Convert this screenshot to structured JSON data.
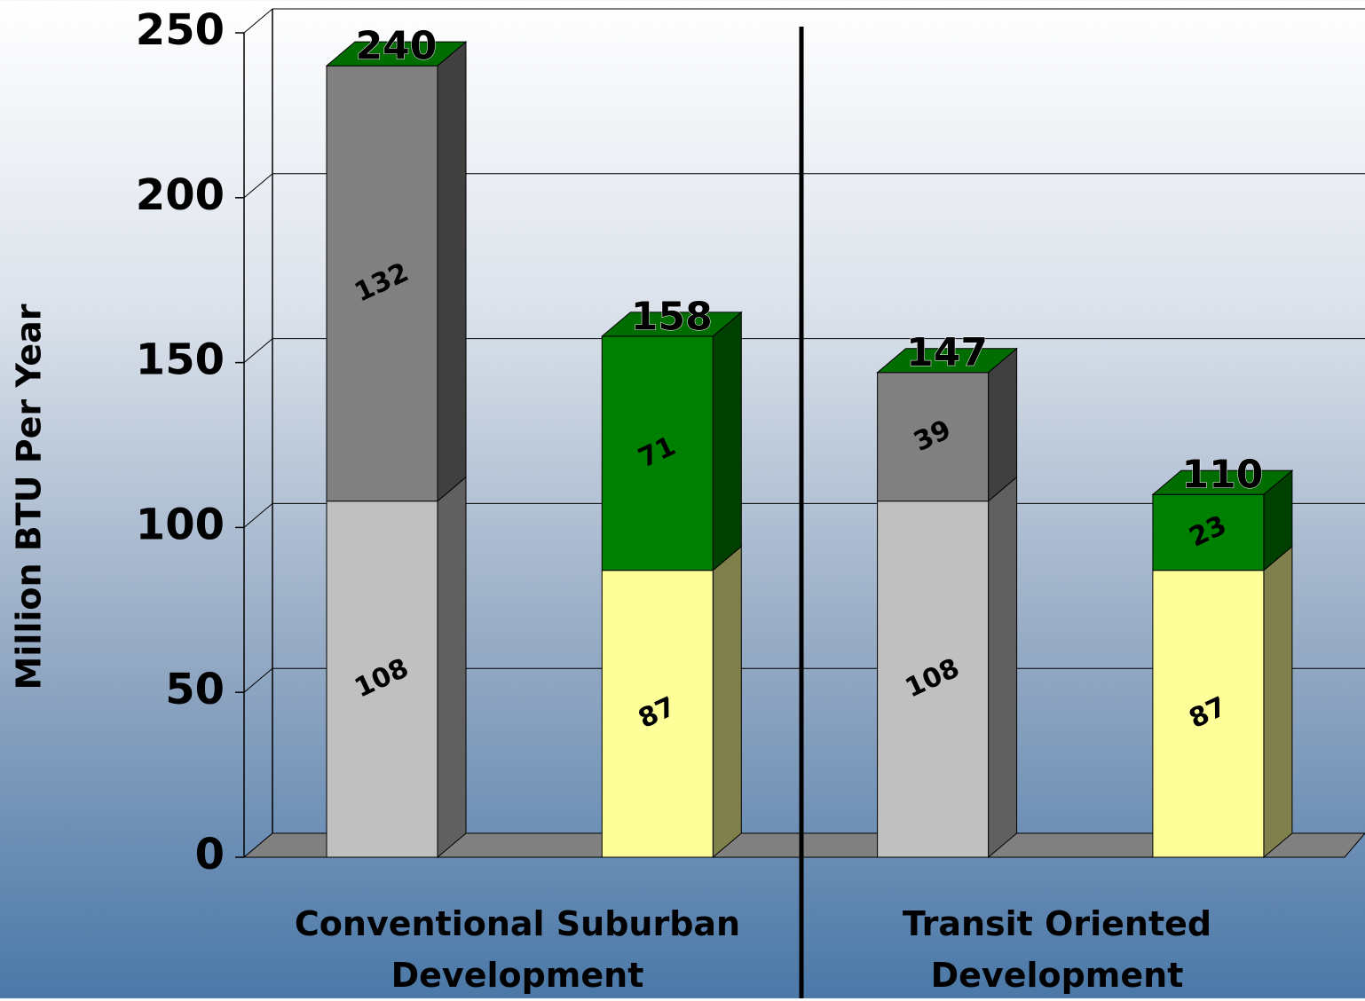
{
  "chart_data": {
    "type": "bar",
    "stacked": true,
    "three_d": true,
    "ylabel": "Million BTU Per Year",
    "groups": [
      "Conventional Suburban Development",
      "Transit Oriented Development"
    ],
    "series": [
      {
        "color": "#c0c0c0",
        "values": [
          108,
          null,
          108,
          null
        ]
      },
      {
        "color": "#ffff99",
        "values": [
          null,
          87,
          null,
          87
        ]
      },
      {
        "color": "#808080",
        "values": [
          132,
          null,
          39,
          null
        ]
      },
      {
        "color": "#008000",
        "values": [
          null,
          71,
          null,
          23
        ]
      }
    ],
    "totals": [
      240,
      158,
      147,
      110
    ],
    "ylim": [
      0,
      250
    ],
    "yticks": [
      0,
      50,
      100,
      150,
      200,
      250
    ],
    "grid": true
  }
}
